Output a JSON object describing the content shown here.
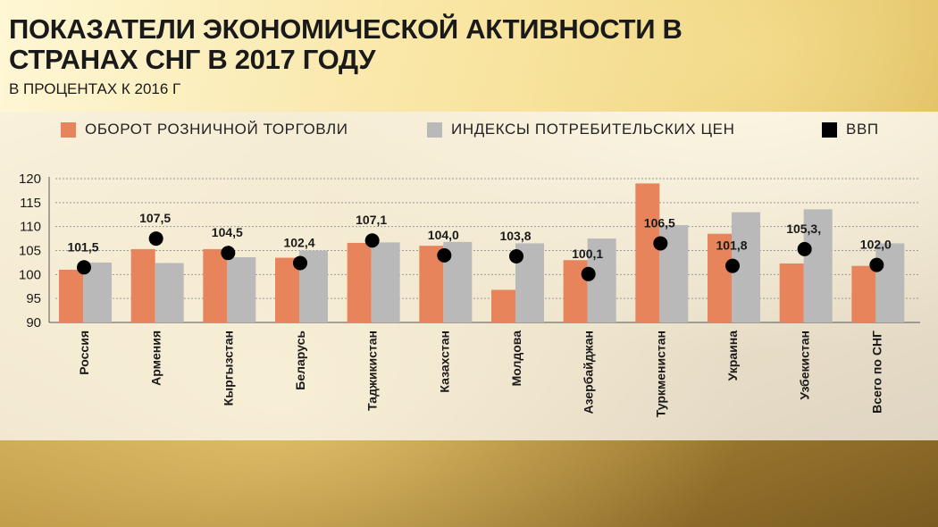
{
  "header": {
    "title": "ПОКАЗАТЕЛИ ЭКОНОМИЧЕСКОЙ АКТИВНОСТИ В СТРАНАХ СНГ В 2017 ГОДУ",
    "subtitle": "В ПРОЦЕНТАХ К 2016 Г"
  },
  "colors": {
    "retail": "#e8845b",
    "cpi": "#b9b9b9",
    "gdp": "#000000"
  },
  "chart_data": {
    "type": "bar",
    "title": "ПОКАЗАТЕЛИ ЭКОНОМИЧЕСКОЙ АКТИВНОСТИ В СТРАНАХ СНГ В 2017 ГОДУ",
    "subtitle": "В ПРОЦЕНТАХ К 2016 Г",
    "categories": [
      "Россия",
      "Армения",
      "Кыргызстан",
      "Беларусь",
      "Таджикистан",
      "Казахстан",
      "Молдова",
      "Азербайджан",
      "Туркменистан",
      "Украина",
      "Узбекистан",
      "Всего по СНГ"
    ],
    "yticks": [
      "90",
      "95",
      "100",
      "105",
      "110",
      "115",
      "120"
    ],
    "ylim": [
      90,
      120
    ],
    "legend_position": "top",
    "grid": true,
    "series": [
      {
        "name": "ОБОРОТ РОЗНИЧНОЙ ТОРГОВЛИ",
        "kind": "bar",
        "values": [
          101.0,
          105.3,
          105.3,
          103.5,
          106.6,
          106.0,
          96.8,
          103.0,
          119.0,
          108.5,
          102.3,
          101.8
        ]
      },
      {
        "name": "ИНДЕКСЫ ПОТРЕБИТЕЛЬСКИХ ЦЕН",
        "kind": "bar",
        "values": [
          102.5,
          102.4,
          103.6,
          105.0,
          106.7,
          106.8,
          106.5,
          107.5,
          110.3,
          113.0,
          113.6,
          106.5
        ]
      },
      {
        "name": "ВВП",
        "kind": "point",
        "values": [
          101.5,
          107.5,
          104.5,
          102.4,
          107.1,
          104.0,
          103.8,
          100.1,
          106.5,
          101.8,
          105.3,
          102.0
        ],
        "labels": [
          "101,5",
          "107,5",
          "104,5",
          "102,4",
          "107,1",
          "104,0",
          "103,8",
          "100,1",
          "106,5",
          "101,8",
          "105,3,",
          "102,0"
        ]
      }
    ]
  }
}
